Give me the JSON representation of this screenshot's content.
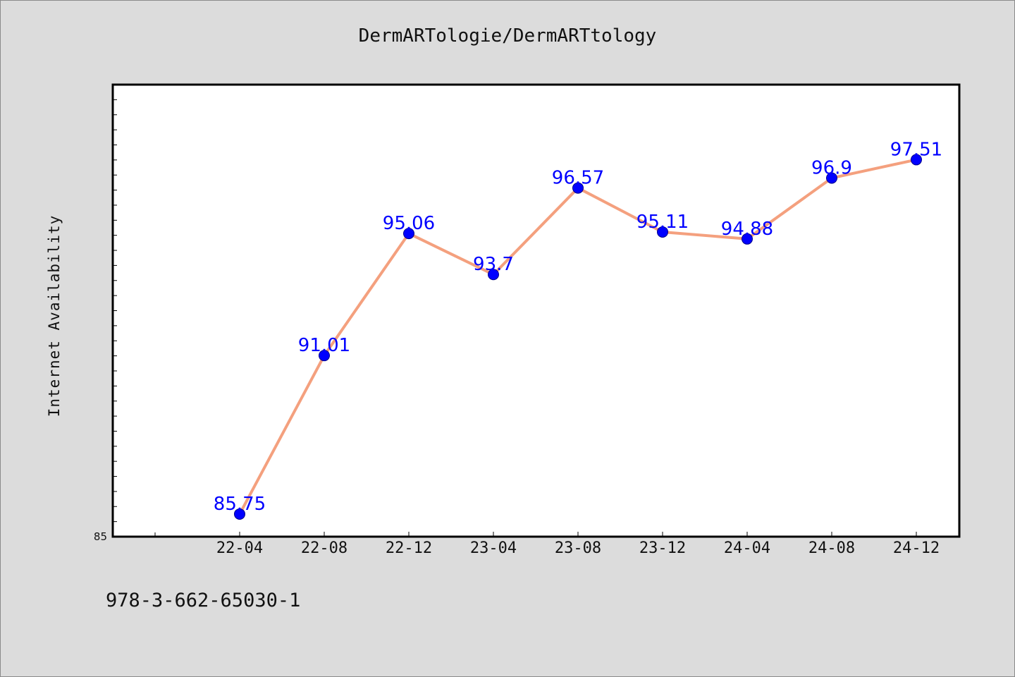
{
  "chart_data": {
    "type": "line",
    "title": "DermARTologie/DermARTtology",
    "xlabel": "",
    "ylabel": "Internet Availability",
    "categories": [
      "22-04",
      "22-08",
      "22-12",
      "23-04",
      "23-08",
      "23-12",
      "24-04",
      "24-08",
      "24-12"
    ],
    "series": [
      {
        "values": [
          85.75,
          91.01,
          95.06,
          93.7,
          96.57,
          95.11,
          94.88,
          96.9,
          97.51
        ]
      }
    ],
    "data_labels": [
      "85.75",
      "91.01",
      "95.06",
      "93.7",
      "96.57",
      "95.11",
      "94.88",
      "96.9",
      "97.51"
    ],
    "y_tick_labels": [
      "85"
    ],
    "ylim": [
      85,
      100
    ],
    "grid": false,
    "legend": "none",
    "colors": {
      "line": "#f4a07e",
      "marker": "#0000ff",
      "labels": "#0000ff",
      "plot_background": "#ffffff",
      "page_background": "#dcdcdc"
    }
  },
  "footer": {
    "isbn": "978-3-662-65030-1"
  }
}
